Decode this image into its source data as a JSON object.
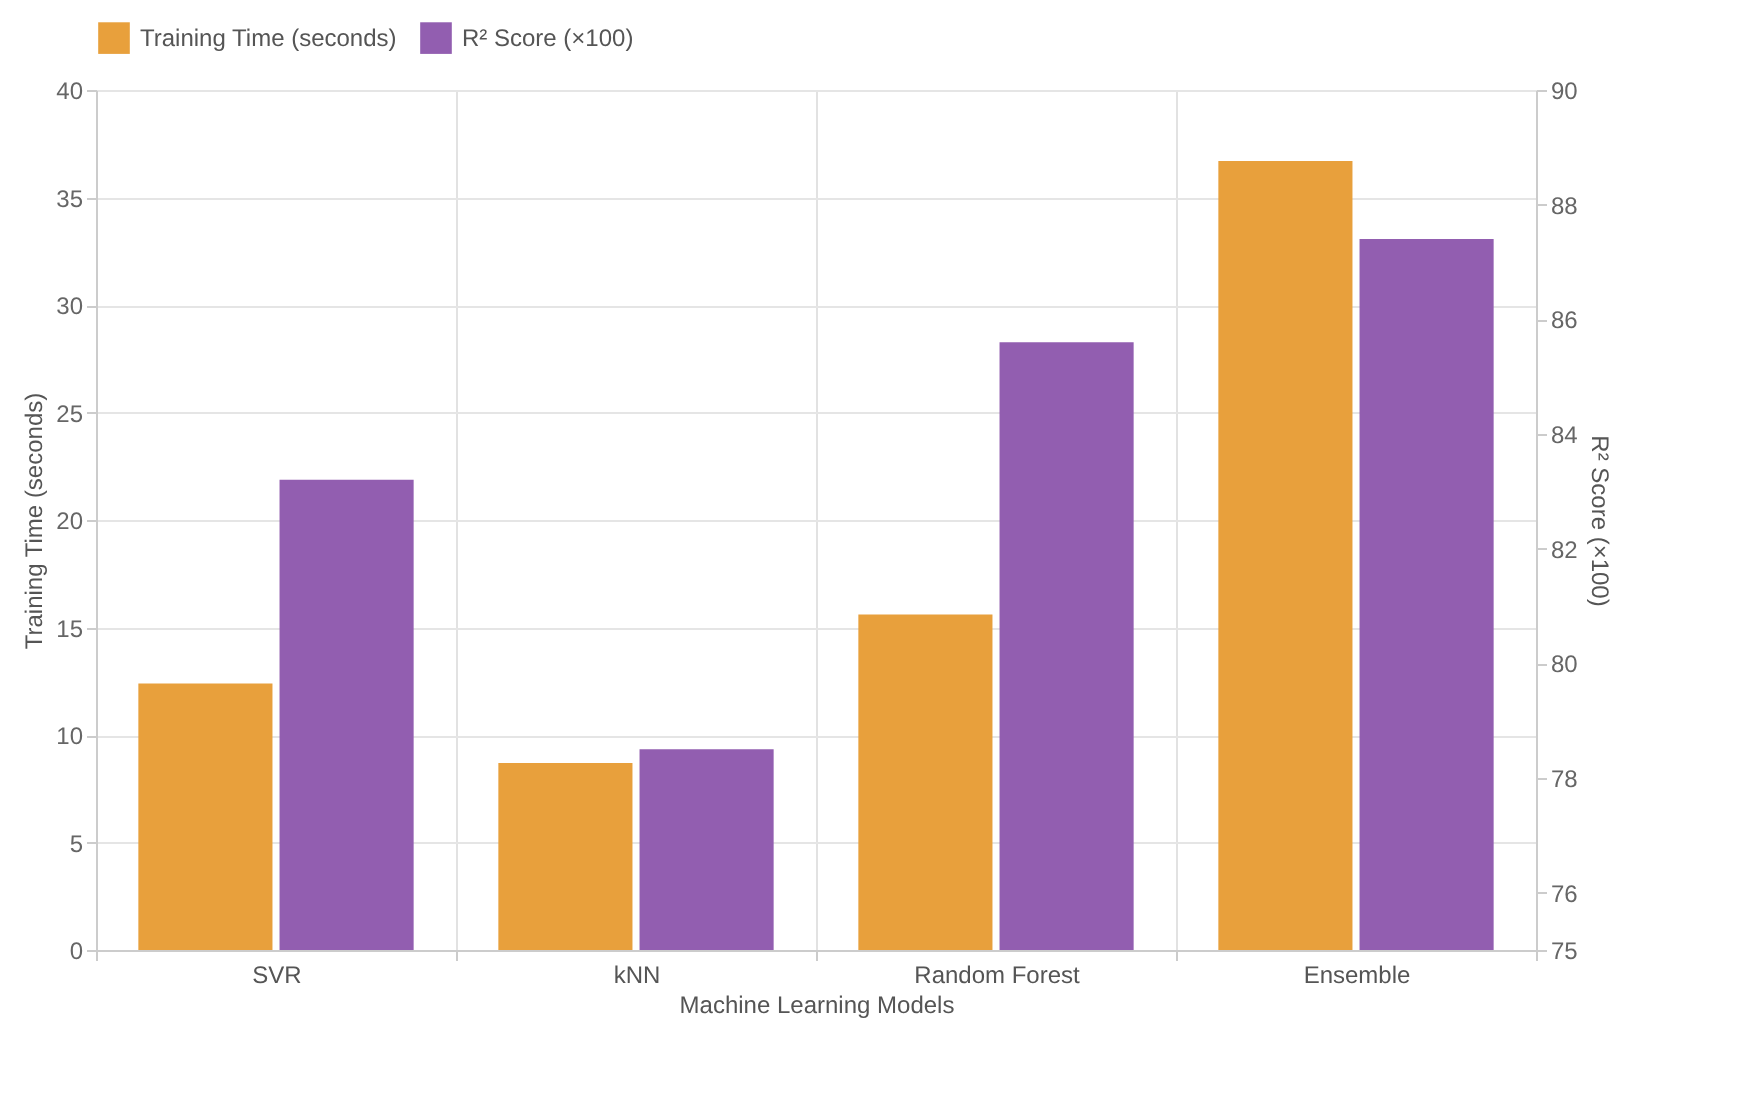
{
  "chart_data": {
    "type": "bar",
    "xlabel": "Machine Learning Models",
    "ylabel": "Training Time (seconds)",
    "y2label": "R² Score (×100)",
    "categories": [
      "SVR",
      "kNN",
      "Random Forest",
      "Ensemble"
    ],
    "series": [
      {
        "name": "Training Time (seconds)",
        "color": "#e8a03c",
        "values": [
          12.4,
          8.7,
          15.6,
          36.7
        ]
      },
      {
        "name": "R² Score (×100)",
        "color": "#925eb0",
        "values": [
          83.2,
          78.5,
          85.6,
          87.4
        ],
        "axis": "y2"
      }
    ],
    "ylim": [
      0,
      40
    ],
    "yticks": [
      0,
      5,
      10,
      15,
      20,
      25,
      30,
      35,
      40
    ],
    "y2lim": [
      75,
      90
    ],
    "y2ticks": [
      75,
      76,
      78,
      80,
      82,
      84,
      86,
      88,
      90
    ],
    "grid": true,
    "legend": "top"
  }
}
